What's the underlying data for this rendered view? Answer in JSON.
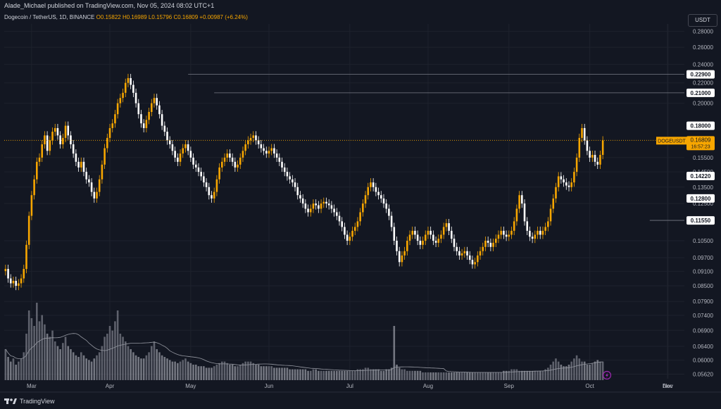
{
  "header": {
    "published": "Alade_Michael published on TradingView.com, Nov 05, 2024 08:02 UTC+1",
    "symbol": "Dogecoin / TetherUS, 1D, BINANCE",
    "ohlc": "O0.15822 H0.16989 L0.15796 C0.16809 +0.00987 (+6.24%)"
  },
  "currency_button": "USDT",
  "footer": {
    "brand": "TradingView"
  },
  "colors": {
    "background": "#131722",
    "bull": "#f7a600",
    "bear": "#ffffff",
    "grid": "#1e222d",
    "level_line": "#787b86",
    "current_price": "#f7a600"
  },
  "chart_data": {
    "type": "candlestick",
    "title": "Dogecoin / TetherUS, 1D, BINANCE",
    "ylim": [
      0.055,
      0.29
    ],
    "y_scale": "log",
    "y_ticks": [
      "0.28000",
      "0.26000",
      "0.24000",
      "0.22000",
      "0.20000",
      "0.15500",
      "0.14500",
      "0.13500",
      "0.12500",
      "0.10500",
      "0.09700",
      "0.09100",
      "0.08500",
      "0.07900",
      "0.07400",
      "0.06900",
      "0.06400",
      "0.06000",
      "0.05620"
    ],
    "x_ticks": [
      "Mar",
      "Apr",
      "May",
      "Jun",
      "Jul",
      "Aug",
      "Sep",
      "Oct",
      "Nov",
      "Dec"
    ],
    "horizontal_levels": [
      "0.22900",
      "0.21000",
      "0.18000",
      "0.14220",
      "0.12800",
      "0.11550"
    ],
    "last_price_label": "DOGEUSDT",
    "last_price": "0.16809",
    "countdown": "16:57:23",
    "closes": [
      0.092,
      0.088,
      0.086,
      0.087,
      0.085,
      0.086,
      0.088,
      0.092,
      0.103,
      0.118,
      0.13,
      0.14,
      0.152,
      0.155,
      0.165,
      0.172,
      0.16,
      0.168,
      0.175,
      0.178,
      0.172,
      0.165,
      0.17,
      0.18,
      0.172,
      0.165,
      0.158,
      0.152,
      0.148,
      0.152,
      0.145,
      0.14,
      0.138,
      0.132,
      0.128,
      0.132,
      0.14,
      0.15,
      0.162,
      0.17,
      0.178,
      0.182,
      0.19,
      0.2,
      0.205,
      0.21,
      0.22,
      0.225,
      0.218,
      0.21,
      0.2,
      0.19,
      0.182,
      0.178,
      0.185,
      0.192,
      0.2,
      0.205,
      0.198,
      0.19,
      0.18,
      0.175,
      0.168,
      0.165,
      0.16,
      0.155,
      0.152,
      0.158,
      0.162,
      0.165,
      0.16,
      0.155,
      0.15,
      0.148,
      0.145,
      0.142,
      0.138,
      0.135,
      0.13,
      0.128,
      0.132,
      0.14,
      0.148,
      0.152,
      0.155,
      0.158,
      0.155,
      0.152,
      0.148,
      0.15,
      0.155,
      0.16,
      0.165,
      0.168,
      0.17,
      0.172,
      0.168,
      0.165,
      0.162,
      0.16,
      0.158,
      0.16,
      0.162,
      0.158,
      0.155,
      0.152,
      0.148,
      0.145,
      0.142,
      0.14,
      0.138,
      0.135,
      0.13,
      0.128,
      0.125,
      0.122,
      0.12,
      0.122,
      0.125,
      0.124,
      0.122,
      0.125,
      0.126,
      0.125,
      0.124,
      0.122,
      0.12,
      0.118,
      0.115,
      0.112,
      0.108,
      0.105,
      0.107,
      0.11,
      0.112,
      0.115,
      0.12,
      0.125,
      0.13,
      0.135,
      0.138,
      0.135,
      0.132,
      0.13,
      0.128,
      0.125,
      0.122,
      0.118,
      0.112,
      0.105,
      0.1,
      0.095,
      0.098,
      0.1,
      0.105,
      0.108,
      0.11,
      0.108,
      0.105,
      0.103,
      0.105,
      0.108,
      0.11,
      0.108,
      0.105,
      0.104,
      0.106,
      0.108,
      0.112,
      0.114,
      0.11,
      0.106,
      0.102,
      0.1,
      0.098,
      0.099,
      0.1,
      0.098,
      0.096,
      0.094,
      0.095,
      0.098,
      0.1,
      0.102,
      0.105,
      0.104,
      0.102,
      0.104,
      0.106,
      0.108,
      0.11,
      0.108,
      0.107,
      0.108,
      0.11,
      0.115,
      0.122,
      0.13,
      0.125,
      0.115,
      0.11,
      0.107,
      0.106,
      0.108,
      0.11,
      0.108,
      0.11,
      0.112,
      0.115,
      0.122,
      0.128,
      0.135,
      0.142,
      0.14,
      0.138,
      0.136,
      0.135,
      0.138,
      0.145,
      0.155,
      0.17,
      0.178,
      0.168,
      0.16,
      0.155,
      0.157,
      0.152,
      0.15,
      0.157,
      0.168
    ],
    "volumes": [
      20,
      15,
      12,
      14,
      10,
      12,
      14,
      18,
      30,
      45,
      40,
      35,
      50,
      38,
      42,
      36,
      30,
      28,
      32,
      25,
      22,
      20,
      24,
      28,
      22,
      20,
      18,
      16,
      15,
      18,
      16,
      14,
      13,
      12,
      14,
      16,
      18,
      22,
      28,
      30,
      35,
      32,
      38,
      45,
      30,
      28,
      25,
      22,
      20,
      18,
      16,
      15,
      14,
      14,
      16,
      18,
      22,
      25,
      20,
      18,
      16,
      15,
      14,
      13,
      12,
      12,
      11,
      12,
      13,
      14,
      12,
      11,
      10,
      10,
      9,
      9,
      9,
      8,
      8,
      8,
      9,
      10,
      11,
      12,
      12,
      11,
      10,
      10,
      9,
      9,
      10,
      11,
      12,
      12,
      12,
      11,
      10,
      10,
      9,
      9,
      9,
      9,
      9,
      8,
      8,
      8,
      8,
      8,
      8,
      7,
      7,
      7,
      7,
      7,
      7,
      7,
      6,
      6,
      7,
      7,
      6,
      6,
      6,
      6,
      6,
      6,
      6,
      6,
      6,
      6,
      6,
      6,
      6,
      6,
      6,
      7,
      7,
      7,
      8,
      8,
      7,
      7,
      7,
      7,
      6,
      6,
      7,
      7,
      8,
      35,
      10,
      8,
      7,
      7,
      6,
      6,
      6,
      6,
      6,
      6,
      5,
      5,
      5,
      5,
      5,
      5,
      5,
      5,
      5,
      5,
      5,
      5,
      5,
      5,
      5,
      5,
      5,
      5,
      5,
      5,
      5,
      5,
      5,
      5,
      5,
      5,
      5,
      5,
      5,
      5,
      5,
      6,
      6,
      6,
      7,
      7,
      7,
      6,
      6,
      6,
      6,
      6,
      6,
      6,
      6,
      6,
      6,
      7,
      8,
      10,
      12,
      14,
      12,
      10,
      9,
      9,
      10,
      12,
      14,
      16,
      14,
      12,
      12,
      10,
      10,
      11,
      12,
      13,
      12,
      12
    ]
  }
}
